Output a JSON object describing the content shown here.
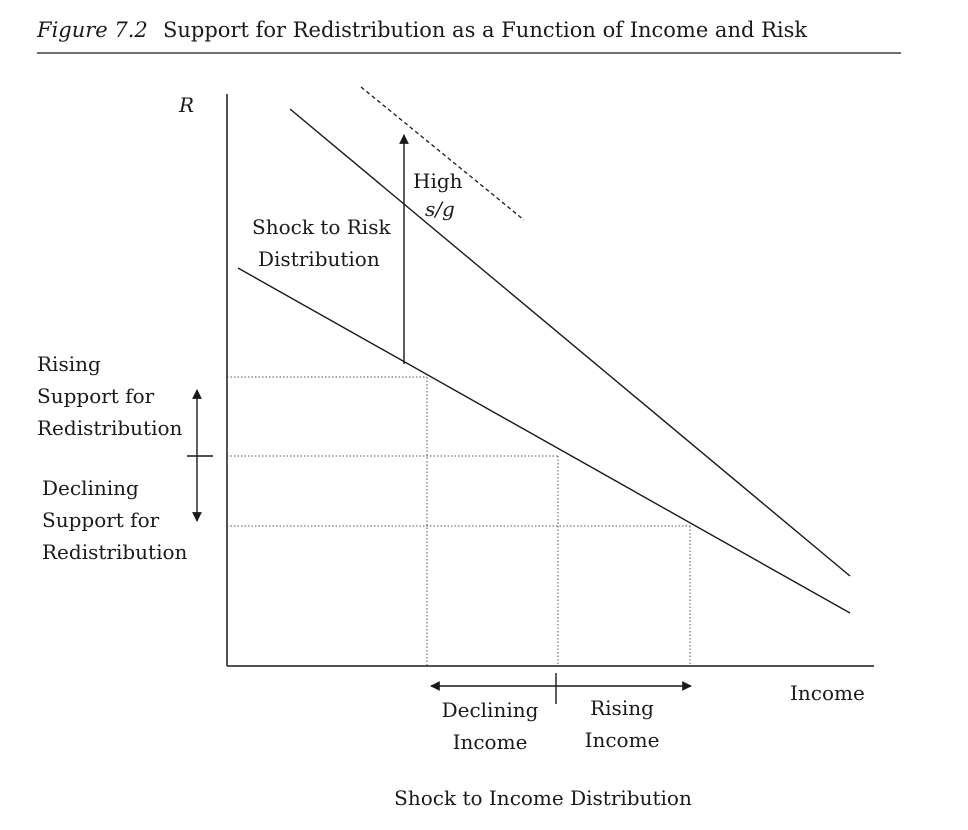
{
  "caption": {
    "number": "Figure 7.2",
    "title": "Support for Redistribution as a Function of Income and Risk"
  },
  "diagram": {
    "y_axis_label": "R",
    "x_axis_label": "Income",
    "high_sg_label_line1": "High",
    "high_sg_label_line2": "s/g",
    "risk_shock_label_line1": "Shock to Risk",
    "risk_shock_label_line2": "Distribution",
    "rising_support_line1": "Rising",
    "rising_support_line2": "Support for",
    "rising_support_line3": "Redistribution",
    "declining_support_line1": "Declining",
    "declining_support_line2": "Support for",
    "declining_support_line3": "Redistribution",
    "declining_income_line1": "Declining",
    "declining_income_line2": "Income",
    "rising_income_line1": "Rising",
    "rising_income_line2": "Income",
    "income_shock_label": "Shock to Income Distribution"
  }
}
